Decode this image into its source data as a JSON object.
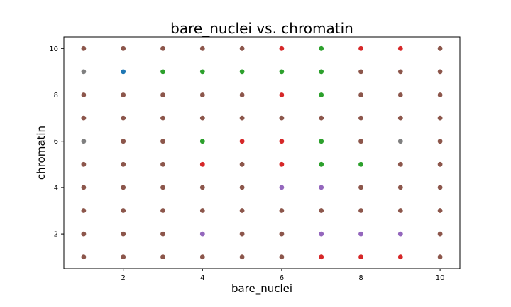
{
  "chart_data": {
    "type": "scatter",
    "title": "bare_nuclei vs. chromatin",
    "xlabel": "bare_nuclei",
    "ylabel": "chromatin",
    "xlim": [
      0.5,
      10.5
    ],
    "ylim": [
      0.5,
      10.5
    ],
    "xticks": [
      2,
      4,
      6,
      8,
      10
    ],
    "yticks": [
      2,
      4,
      6,
      8,
      10
    ],
    "grid": false,
    "default_color": "#8c564b",
    "colored_points": [
      {
        "x": 1,
        "y": 9,
        "color": "#7f7f7f"
      },
      {
        "x": 1,
        "y": 6,
        "color": "#7f7f7f"
      },
      {
        "x": 2,
        "y": 9,
        "color": "#1f77b4"
      },
      {
        "x": 3,
        "y": 9,
        "color": "#2ca02c"
      },
      {
        "x": 4,
        "y": 9,
        "color": "#2ca02c"
      },
      {
        "x": 4,
        "y": 6,
        "color": "#2ca02c"
      },
      {
        "x": 4,
        "y": 5,
        "color": "#d62728"
      },
      {
        "x": 4,
        "y": 2,
        "color": "#9467bd"
      },
      {
        "x": 5,
        "y": 9,
        "color": "#2ca02c"
      },
      {
        "x": 5,
        "y": 6,
        "color": "#d62728"
      },
      {
        "x": 6,
        "y": 10,
        "color": "#d62728"
      },
      {
        "x": 6,
        "y": 9,
        "color": "#2ca02c"
      },
      {
        "x": 6,
        "y": 8,
        "color": "#d62728"
      },
      {
        "x": 6,
        "y": 6,
        "color": "#d62728"
      },
      {
        "x": 6,
        "y": 5,
        "color": "#d62728"
      },
      {
        "x": 6,
        "y": 4,
        "color": "#9467bd"
      },
      {
        "x": 7,
        "y": 10,
        "color": "#2ca02c"
      },
      {
        "x": 7,
        "y": 9,
        "color": "#2ca02c"
      },
      {
        "x": 7,
        "y": 8,
        "color": "#2ca02c"
      },
      {
        "x": 7,
        "y": 6,
        "color": "#2ca02c"
      },
      {
        "x": 7,
        "y": 5,
        "color": "#2ca02c"
      },
      {
        "x": 7,
        "y": 4,
        "color": "#9467bd"
      },
      {
        "x": 7,
        "y": 2,
        "color": "#9467bd"
      },
      {
        "x": 7,
        "y": 1,
        "color": "#d62728"
      },
      {
        "x": 8,
        "y": 10,
        "color": "#d62728"
      },
      {
        "x": 8,
        "y": 5,
        "color": "#2ca02c"
      },
      {
        "x": 8,
        "y": 2,
        "color": "#9467bd"
      },
      {
        "x": 8,
        "y": 1,
        "color": "#d62728"
      },
      {
        "x": 9,
        "y": 10,
        "color": "#d62728"
      },
      {
        "x": 9,
        "y": 6,
        "color": "#7f7f7f"
      },
      {
        "x": 9,
        "y": 2,
        "color": "#9467bd"
      },
      {
        "x": 9,
        "y": 1,
        "color": "#d62728"
      }
    ],
    "x_values": [
      1,
      2,
      3,
      4,
      5,
      6,
      7,
      8,
      9,
      10
    ],
    "y_values": [
      1,
      2,
      3,
      4,
      5,
      6,
      7,
      8,
      9,
      10
    ]
  }
}
